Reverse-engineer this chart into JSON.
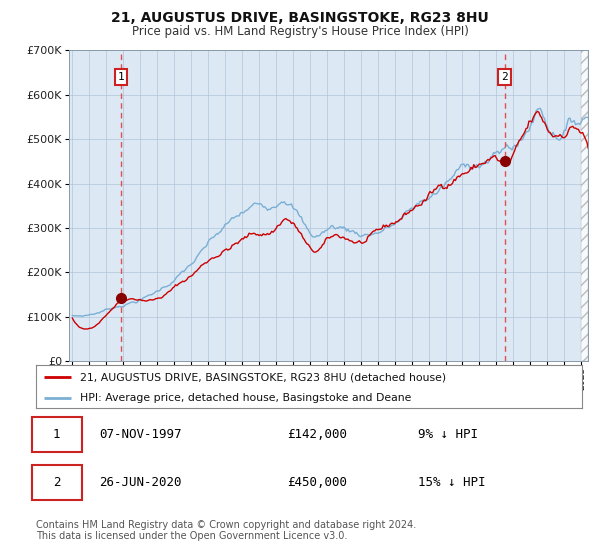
{
  "title1": "21, AUGUSTUS DRIVE, BASINGSTOKE, RG23 8HU",
  "title2": "Price paid vs. HM Land Registry's House Price Index (HPI)",
  "purchase1_year": 1997.85,
  "purchase1_price": 142000,
  "purchase1_label": "1",
  "purchase2_year": 2020.48,
  "purchase2_price": 450000,
  "purchase2_label": "2",
  "legend1": "21, AUGUSTUS DRIVE, BASINGSTOKE, RG23 8HU (detached house)",
  "legend2": "HPI: Average price, detached house, Basingstoke and Deane",
  "table1_date": "07-NOV-1997",
  "table1_price": "£142,000",
  "table1_hpi": "9% ↓ HPI",
  "table2_date": "26-JUN-2020",
  "table2_price": "£450,000",
  "table2_hpi": "15% ↓ HPI",
  "footer": "Contains HM Land Registry data © Crown copyright and database right 2024.\nThis data is licensed under the Open Government Licence v3.0.",
  "bg_color": "#dce9f5",
  "red_line_color": "#cc0000",
  "blue_line_color": "#7bafd4",
  "grid_color": "#b0c4d8",
  "vline_color": "#e05050",
  "marker_color": "#880000",
  "ymax": 700000,
  "ymin": 0,
  "xmin": 1994.8,
  "xmax": 2025.4
}
